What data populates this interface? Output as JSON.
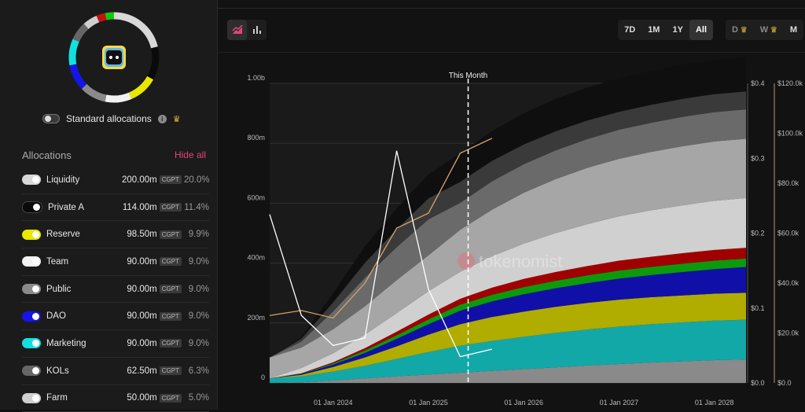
{
  "sidebar": {
    "standard_label": "Standard allocations",
    "allocations_title": "Allocations",
    "hide_all": "Hide all",
    "items": [
      {
        "name": "Liquidity",
        "amount": "200.00m",
        "currency": "CGPT",
        "pct": "20.0%",
        "color": "#d8d8d8"
      },
      {
        "name": "Private A",
        "amount": "114.00m",
        "currency": "CGPT",
        "pct": "11.4%",
        "color": "#0a0a0a"
      },
      {
        "name": "Reserve",
        "amount": "98.50m",
        "currency": "CGPT",
        "pct": "9.9%",
        "color": "#e8e800"
      },
      {
        "name": "Team",
        "amount": "90.00m",
        "currency": "CGPT",
        "pct": "9.0%",
        "color": "#f2f2f2"
      },
      {
        "name": "Public",
        "amount": "90.00m",
        "currency": "CGPT",
        "pct": "9.0%",
        "color": "#8a8a8a"
      },
      {
        "name": "DAO",
        "amount": "90.00m",
        "currency": "CGPT",
        "pct": "9.0%",
        "color": "#1515e8"
      },
      {
        "name": "Marketing",
        "amount": "90.00m",
        "currency": "CGPT",
        "pct": "9.0%",
        "color": "#12e0e0"
      },
      {
        "name": "KOLs",
        "amount": "62.50m",
        "currency": "CGPT",
        "pct": "6.3%",
        "color": "#666666"
      },
      {
        "name": "Farm",
        "amount": "50.00m",
        "currency": "CGPT",
        "pct": "5.0%",
        "color": "#cfcfcf"
      }
    ]
  },
  "controls": {
    "ranges": [
      "7D",
      "1M",
      "1Y",
      "All"
    ],
    "active_range": "All",
    "granularity": [
      "D",
      "W",
      "M"
    ]
  },
  "chart_data": {
    "type": "area",
    "stacked": true,
    "watermark": "tokenomist",
    "marker_label": "This Month",
    "x_ticks": [
      "01 Jan 2024",
      "01 Jan 2025",
      "01 Jan 2026",
      "01 Jan 2027",
      "01 Jan 2028"
    ],
    "x": [
      "2023-05",
      "2023-09",
      "2024-01",
      "2024-05",
      "2024-09",
      "2025-01",
      "2025-05",
      "2025-09",
      "2026-01",
      "2026-05",
      "2026-09",
      "2027-01",
      "2027-05",
      "2027-09",
      "2028-01",
      "2028-05"
    ],
    "marker_x": "2025-06",
    "y_left": {
      "ticks": [
        "0",
        "200m",
        "400m",
        "600m",
        "800m",
        "1.00b"
      ],
      "max": 1000
    },
    "y_right_price": {
      "ticks": [
        "$0.0",
        "$0.1",
        "$0.2",
        "$0.3",
        "$0.4"
      ],
      "max": 0.4
    },
    "y_right_mcap": {
      "ticks": [
        "$0.0",
        "$20.0k",
        "$40.0k",
        "$60.0k",
        "$80.0k",
        "$100.0k",
        "$120.0k"
      ],
      "max": 120000
    },
    "series": [
      {
        "color": "#8a8a8a",
        "values": [
          0,
          2,
          8,
          15,
          22,
          28,
          34,
          40,
          46,
          52,
          58,
          63,
          68,
          72,
          76,
          78
        ]
      },
      {
        "color": "#12a8a8",
        "values": [
          15,
          20,
          30,
          42,
          58,
          75,
          90,
          100,
          108,
          115,
          120,
          125,
          128,
          130,
          132,
          133
        ]
      },
      {
        "color": "#b0ac00",
        "values": [
          0,
          5,
          15,
          28,
          42,
          58,
          72,
          80,
          84,
          87,
          89,
          90,
          90,
          90,
          90,
          90
        ]
      },
      {
        "color": "#1010a8",
        "values": [
          0,
          3,
          8,
          15,
          25,
          35,
          45,
          52,
          58,
          62,
          66,
          70,
          74,
          78,
          82,
          86
        ]
      },
      {
        "color": "#0c9a0c",
        "values": [
          0,
          1,
          4,
          8,
          12,
          16,
          20,
          22,
          24,
          25,
          26,
          27,
          27,
          28,
          28,
          28
        ]
      },
      {
        "color": "#a00000",
        "values": [
          0,
          1,
          4,
          8,
          12,
          16,
          20,
          24,
          27,
          29,
          31,
          33,
          34,
          35,
          36,
          36
        ]
      },
      {
        "color": "#d0d0d0",
        "values": [
          0,
          18,
          30,
          45,
          62,
          78,
          90,
          105,
          118,
          130,
          140,
          148,
          155,
          160,
          164,
          166
        ]
      },
      {
        "color": "#a6a6a6",
        "values": [
          70,
          68,
          80,
          95,
          110,
          120,
          140,
          155,
          170,
          180,
          188,
          192,
          195,
          197,
          198,
          198
        ]
      },
      {
        "color": "#6a6a6a",
        "values": [
          0,
          20,
          60,
          95,
          110,
          120,
          90,
          95,
          95,
          96,
          96,
          97,
          97,
          98,
          98,
          98
        ]
      },
      {
        "color": "#3a3a3a",
        "values": [
          0,
          10,
          30,
          50,
          60,
          70,
          70,
          68,
          66,
          64,
          62,
          60,
          60,
          60,
          60,
          60
        ]
      },
      {
        "color": "#0f0f0f",
        "values": [
          0,
          5,
          30,
          55,
          70,
          80,
          95,
          100,
          104,
          108,
          110,
          112,
          113,
          114,
          114,
          114
        ]
      }
    ],
    "price_line": {
      "color": "#ffffff",
      "values": [
        0.225,
        0.09,
        0.05,
        0.06,
        0.31,
        0.125,
        0.035,
        0.045,
        null,
        null,
        null,
        null,
        null,
        null,
        null,
        null
      ],
      "peak": 0.375
    },
    "mcap_line": {
      "color": "#d6a36a",
      "values": [
        27000,
        29000,
        26000,
        40000,
        62000,
        68000,
        92000,
        98000,
        null,
        null,
        null,
        null,
        null,
        null,
        null,
        null
      ]
    }
  }
}
